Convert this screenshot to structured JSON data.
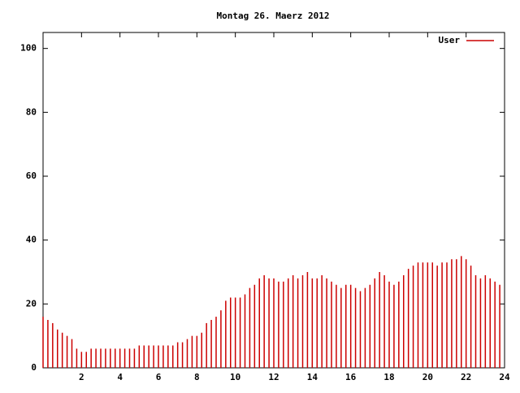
{
  "chart_data": {
    "type": "impulse",
    "title": "Montag 26. Maerz 2012",
    "x": [
      0,
      0.25,
      0.5,
      0.75,
      1,
      1.25,
      1.5,
      1.75,
      2,
      2.25,
      2.5,
      2.75,
      3,
      3.25,
      3.5,
      3.75,
      4,
      4.25,
      4.5,
      4.75,
      5,
      5.25,
      5.5,
      5.75,
      6,
      6.25,
      6.5,
      6.75,
      7,
      7.25,
      7.5,
      7.75,
      8,
      8.25,
      8.5,
      8.75,
      9,
      9.25,
      9.5,
      9.75,
      10,
      10.25,
      10.5,
      10.75,
      11,
      11.25,
      11.5,
      11.75,
      12,
      12.25,
      12.5,
      12.75,
      13,
      13.25,
      13.5,
      13.75,
      14,
      14.25,
      14.5,
      14.75,
      15,
      15.25,
      15.5,
      15.75,
      16,
      16.25,
      16.5,
      16.75,
      17,
      17.25,
      17.5,
      17.75,
      18,
      18.25,
      18.5,
      18.75,
      19,
      19.25,
      19.5,
      19.75,
      20,
      20.25,
      20.5,
      20.75,
      21,
      21.25,
      21.5,
      21.75,
      22,
      22.25,
      22.5,
      22.75,
      23,
      23.25,
      23.5,
      23.75
    ],
    "series": [
      {
        "name": "User",
        "color": "#cc0000",
        "values": [
          16,
          15,
          14,
          12,
          11,
          10,
          9,
          6,
          5,
          5,
          6,
          6,
          6,
          6,
          6,
          6,
          6,
          6,
          6,
          6,
          7,
          7,
          7,
          7,
          7,
          7,
          7,
          7,
          8,
          8,
          9,
          10,
          10,
          11,
          14,
          15,
          16,
          18,
          21,
          22,
          22,
          22,
          23,
          25,
          26,
          28,
          29,
          28,
          28,
          27,
          27,
          28,
          29,
          28,
          29,
          30,
          28,
          28,
          29,
          28,
          27,
          26,
          25,
          26,
          26,
          25,
          24,
          25,
          26,
          28,
          30,
          29,
          27,
          26,
          27,
          29,
          31,
          32,
          33,
          33,
          33,
          33,
          32,
          33,
          33,
          34,
          34,
          35,
          34,
          32,
          29,
          28,
          29,
          28,
          27,
          26
        ]
      }
    ],
    "xlim": [
      0,
      24
    ],
    "xticks": [
      2,
      4,
      6,
      8,
      10,
      12,
      14,
      16,
      18,
      20,
      22,
      24
    ],
    "ylim": [
      0,
      105
    ],
    "yticks": [
      0,
      20,
      40,
      60,
      80,
      100
    ],
    "grid": false,
    "legend": "top-right"
  }
}
